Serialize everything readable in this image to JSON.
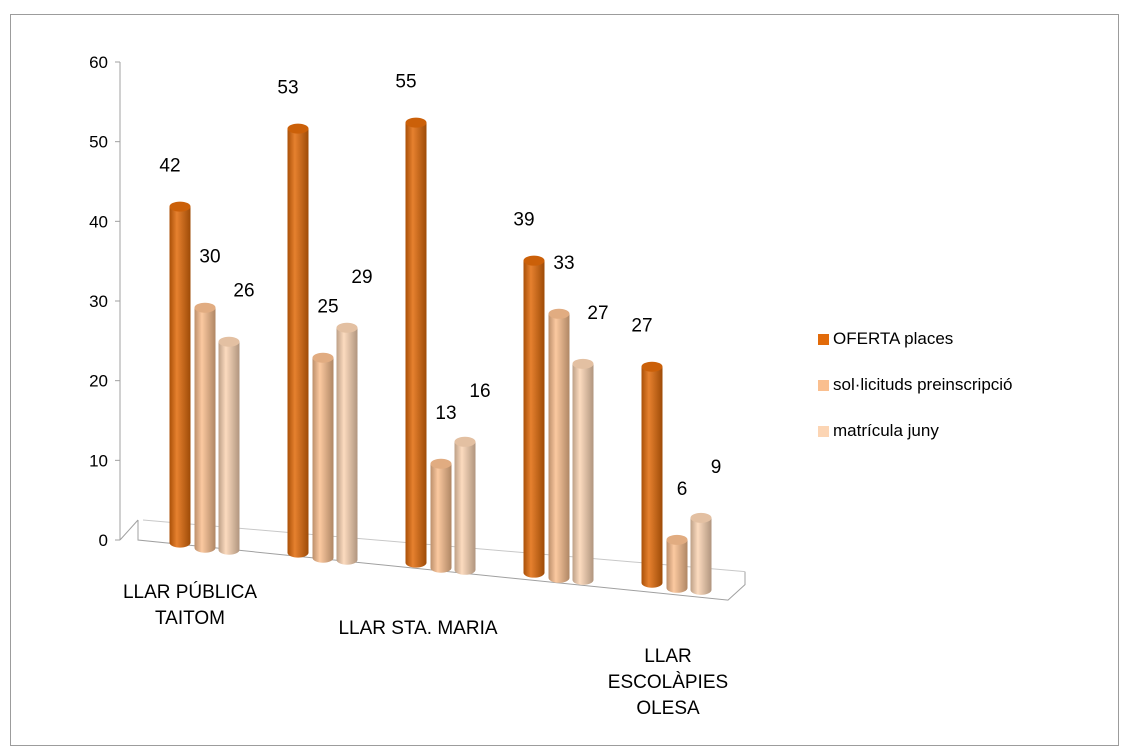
{
  "chart_data": {
    "type": "bar",
    "style": "3d-cylinder",
    "categories": [
      "LLAR  PÚBLICA TAITOM",
      "",
      "LLAR STA. MARIA",
      "",
      "LLAR ESCOLÀPIES OLESA"
    ],
    "category_label_lines": [
      [
        "LLAR  PÚBLICA",
        "TAITOM"
      ],
      [],
      [
        "LLAR STA. MARIA"
      ],
      [],
      [
        "LLAR",
        "ESCOLÀPIES",
        "OLESA"
      ]
    ],
    "series": [
      {
        "name": "OFERTA places",
        "values": [
          42,
          53,
          55,
          39,
          27
        ],
        "color": "#e26b0a"
      },
      {
        "name": "sol·licituds preinscripció",
        "values": [
          30,
          25,
          13,
          33,
          6
        ],
        "color": "#fabf8f"
      },
      {
        "name": "matrícula juny",
        "values": [
          26,
          29,
          16,
          27,
          9
        ],
        "color": "#fcd5b4"
      }
    ],
    "ylim": [
      0,
      60
    ],
    "yticks": [
      "0",
      "10",
      "20",
      "30",
      "40",
      "50",
      "60"
    ],
    "legend_position": "right",
    "grid": false,
    "data_labels": true
  }
}
